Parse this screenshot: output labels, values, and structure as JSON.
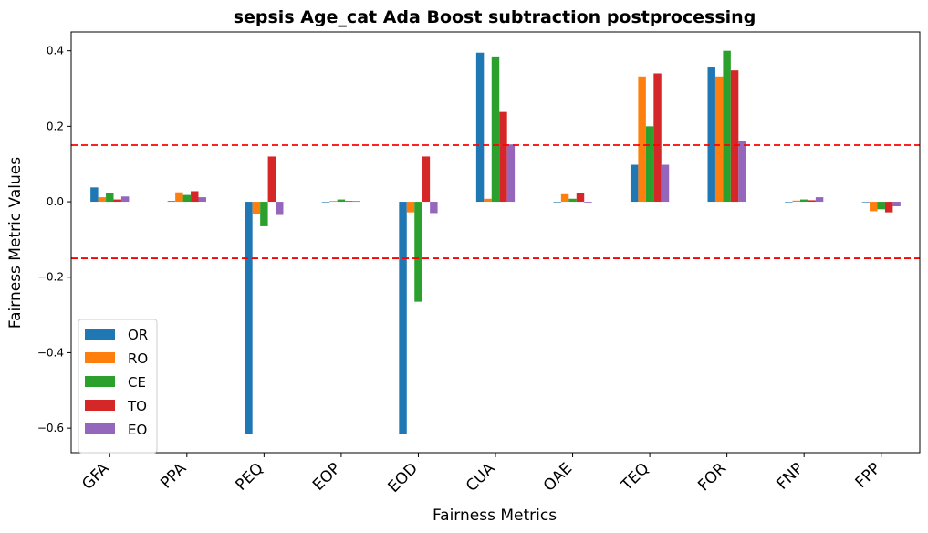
{
  "chart_data": {
    "type": "bar",
    "title": "sepsis Age_cat Ada Boost subtraction postprocessing",
    "xlabel": "Fairness Metrics",
    "ylabel": "Fairness Metric Values",
    "ylim": [
      -0.665,
      0.45
    ],
    "yticks": [
      0.4,
      0.2,
      0.0,
      -0.2,
      -0.4,
      -0.6
    ],
    "ytick_labels": [
      "0.4",
      "0.2",
      "0.0",
      "−0.2",
      "−0.4",
      "−0.6"
    ],
    "categories": [
      "GFA",
      "PPA",
      "PEQ",
      "EOP",
      "EOD",
      "CUA",
      "OAE",
      "TEQ",
      "FOR",
      "FNP",
      "FPP"
    ],
    "series": [
      {
        "name": "OR",
        "color": "#1f77b4",
        "values": [
          0.038,
          0.002,
          -0.615,
          0.0,
          -0.615,
          0.395,
          0.0,
          0.098,
          0.358,
          0.0,
          0.0
        ]
      },
      {
        "name": "RO",
        "color": "#ff7f0e",
        "values": [
          0.012,
          0.025,
          -0.033,
          0.002,
          -0.028,
          0.008,
          0.02,
          0.332,
          0.332,
          0.003,
          -0.025
        ]
      },
      {
        "name": "CE",
        "color": "#2ca02c",
        "values": [
          0.022,
          0.018,
          -0.065,
          0.006,
          -0.265,
          0.385,
          0.008,
          0.2,
          0.4,
          0.006,
          -0.02
        ]
      },
      {
        "name": "TO",
        "color": "#d62728",
        "values": [
          0.006,
          0.028,
          0.12,
          0.002,
          0.12,
          0.238,
          0.022,
          0.34,
          0.348,
          0.004,
          -0.028
        ]
      },
      {
        "name": "EO",
        "color": "#9467bd",
        "values": [
          0.014,
          0.012,
          -0.035,
          0.002,
          -0.03,
          0.152,
          -0.002,
          0.098,
          0.162,
          0.012,
          -0.012
        ]
      }
    ],
    "reference_lines": [
      0.15,
      -0.15
    ],
    "reference_line_color": "#ff0000",
    "legend_position": "lower-left",
    "grid": false
  }
}
